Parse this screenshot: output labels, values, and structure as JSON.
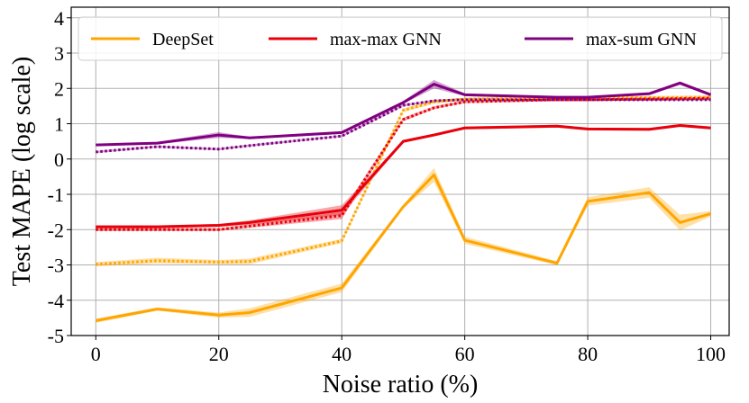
{
  "chart_data": {
    "type": "line",
    "xlabel": "Noise ratio (%)",
    "ylabel": "Test MAPE (log scale)",
    "xlim": [
      -4,
      103
    ],
    "ylim": [
      -5,
      4.3
    ],
    "xticks": [
      0,
      20,
      40,
      60,
      80,
      100
    ],
    "yticks": [
      -5,
      -4,
      -3,
      -2,
      -1,
      0,
      1,
      2,
      3,
      4
    ],
    "grid": true,
    "legend_position": "top",
    "legend": [
      {
        "name": "DeepSet",
        "color": "#FFA500"
      },
      {
        "name": "max-max GNN",
        "color": "#E8000B"
      },
      {
        "name": "max-sum GNN",
        "color": "#800080"
      }
    ],
    "series": [
      {
        "name": "DeepSet",
        "style": "solid",
        "color": "#FFA500",
        "x": [
          0,
          10,
          20,
          25,
          40,
          50,
          55,
          60,
          75,
          80,
          90,
          95,
          100
        ],
        "values": [
          -4.58,
          -4.25,
          -4.42,
          -4.35,
          -3.65,
          -1.35,
          -0.45,
          -2.3,
          -2.95,
          -1.2,
          -0.95,
          -1.8,
          -1.55
        ],
        "band": [
          0.06,
          0.05,
          0.07,
          0.12,
          0.12,
          0.05,
          0.2,
          0.1,
          0.06,
          0.12,
          0.15,
          0.22,
          0.08
        ]
      },
      {
        "name": "DeepSet (dotted)",
        "style": "dotted",
        "color": "#FFA500",
        "x": [
          0,
          10,
          20,
          25,
          40,
          50,
          55,
          60,
          100
        ],
        "values": [
          -2.98,
          -2.88,
          -2.92,
          -2.9,
          -2.32,
          1.38,
          1.62,
          1.7,
          1.75
        ],
        "band": [
          0.06,
          0.08,
          0.06,
          0.08,
          0.06,
          0.05,
          0.05,
          0.04,
          0.05
        ]
      },
      {
        "name": "max-max GNN",
        "style": "solid",
        "color": "#E8000B",
        "x": [
          0,
          10,
          20,
          25,
          40,
          50,
          55,
          60,
          75,
          80,
          90,
          95,
          100
        ],
        "values": [
          -1.92,
          -1.92,
          -1.88,
          -1.8,
          -1.45,
          0.5,
          0.68,
          0.88,
          0.93,
          0.85,
          0.84,
          0.95,
          0.88
        ],
        "band": [
          0.04,
          0.04,
          0.04,
          0.06,
          0.14,
          0.04,
          0.04,
          0.04,
          0.04,
          0.04,
          0.04,
          0.04,
          0.04
        ]
      },
      {
        "name": "max-max GNN (dotted)",
        "style": "dotted",
        "color": "#E8000B",
        "x": [
          0,
          10,
          20,
          25,
          40,
          50,
          55,
          60,
          75,
          80,
          90,
          100
        ],
        "values": [
          -2.0,
          -2.0,
          -2.0,
          -1.9,
          -1.6,
          1.12,
          1.45,
          1.62,
          1.68,
          1.68,
          1.7,
          1.72
        ],
        "band": [
          0.04,
          0.04,
          0.04,
          0.05,
          0.1,
          0.05,
          0.04,
          0.04,
          0.04,
          0.04,
          0.04,
          0.04
        ]
      },
      {
        "name": "max-sum GNN",
        "style": "solid",
        "color": "#800080",
        "x": [
          0,
          10,
          20,
          25,
          40,
          50,
          55,
          60,
          75,
          80,
          90,
          95,
          100
        ],
        "values": [
          0.4,
          0.45,
          0.68,
          0.6,
          0.75,
          1.6,
          2.12,
          1.82,
          1.75,
          1.75,
          1.85,
          2.15,
          1.82
        ],
        "band": [
          0.03,
          0.03,
          0.08,
          0.03,
          0.04,
          0.04,
          0.12,
          0.04,
          0.03,
          0.03,
          0.04,
          0.05,
          0.04
        ]
      },
      {
        "name": "max-sum GNN (dotted)",
        "style": "dotted",
        "color": "#800080",
        "x": [
          0,
          10,
          20,
          25,
          40,
          50,
          55,
          60,
          75,
          80,
          90,
          100
        ],
        "values": [
          0.2,
          0.35,
          0.28,
          0.38,
          0.65,
          1.52,
          1.65,
          1.68,
          1.68,
          1.68,
          1.68,
          1.68
        ],
        "band": [
          0.03,
          0.03,
          0.03,
          0.03,
          0.03,
          0.03,
          0.03,
          0.03,
          0.03,
          0.03,
          0.03,
          0.03
        ]
      }
    ]
  }
}
